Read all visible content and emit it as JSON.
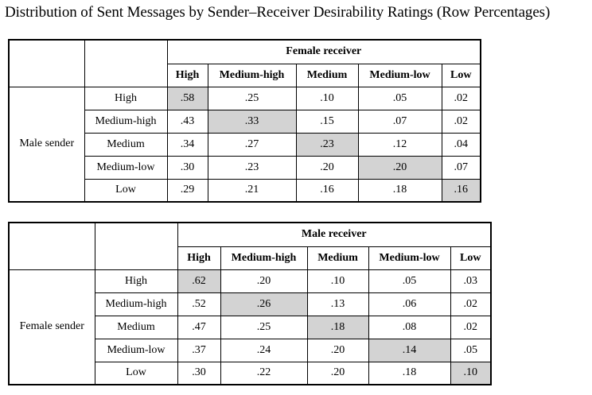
{
  "title": "Distribution of Sent Messages by Sender–Receiver Desirability Ratings (Row Percentages)",
  "tables": [
    {
      "group_label": "Female receiver",
      "side_label": "Male sender",
      "columns": [
        "High",
        "Medium-high",
        "Medium",
        "Medium-low",
        "Low"
      ],
      "rows": [
        {
          "label": "High",
          "values": [
            ".58",
            ".25",
            ".10",
            ".05",
            ".02"
          ]
        },
        {
          "label": "Medium-high",
          "values": [
            ".43",
            ".33",
            ".15",
            ".07",
            ".02"
          ]
        },
        {
          "label": "Medium",
          "values": [
            ".34",
            ".27",
            ".23",
            ".12",
            ".04"
          ]
        },
        {
          "label": "Medium-low",
          "values": [
            ".30",
            ".23",
            ".20",
            ".20",
            ".07"
          ]
        },
        {
          "label": "Low",
          "values": [
            ".29",
            ".21",
            ".16",
            ".18",
            ".16"
          ]
        }
      ]
    },
    {
      "group_label": "Male receiver",
      "side_label": "Female sender",
      "columns": [
        "High",
        "Medium-high",
        "Medium",
        "Medium-low",
        "Low"
      ],
      "rows": [
        {
          "label": "High",
          "values": [
            ".62",
            ".20",
            ".10",
            ".05",
            ".03"
          ]
        },
        {
          "label": "Medium-high",
          "values": [
            ".52",
            ".26",
            ".13",
            ".06",
            ".02"
          ]
        },
        {
          "label": "Medium",
          "values": [
            ".47",
            ".25",
            ".18",
            ".08",
            ".02"
          ]
        },
        {
          "label": "Medium-low",
          "values": [
            ".37",
            ".24",
            ".20",
            ".14",
            ".05"
          ]
        },
        {
          "label": "Low",
          "values": [
            ".30",
            ".22",
            ".20",
            ".18",
            ".10"
          ]
        }
      ]
    }
  ],
  "colors": {
    "diagonal_shade": "#d3d3d3"
  }
}
